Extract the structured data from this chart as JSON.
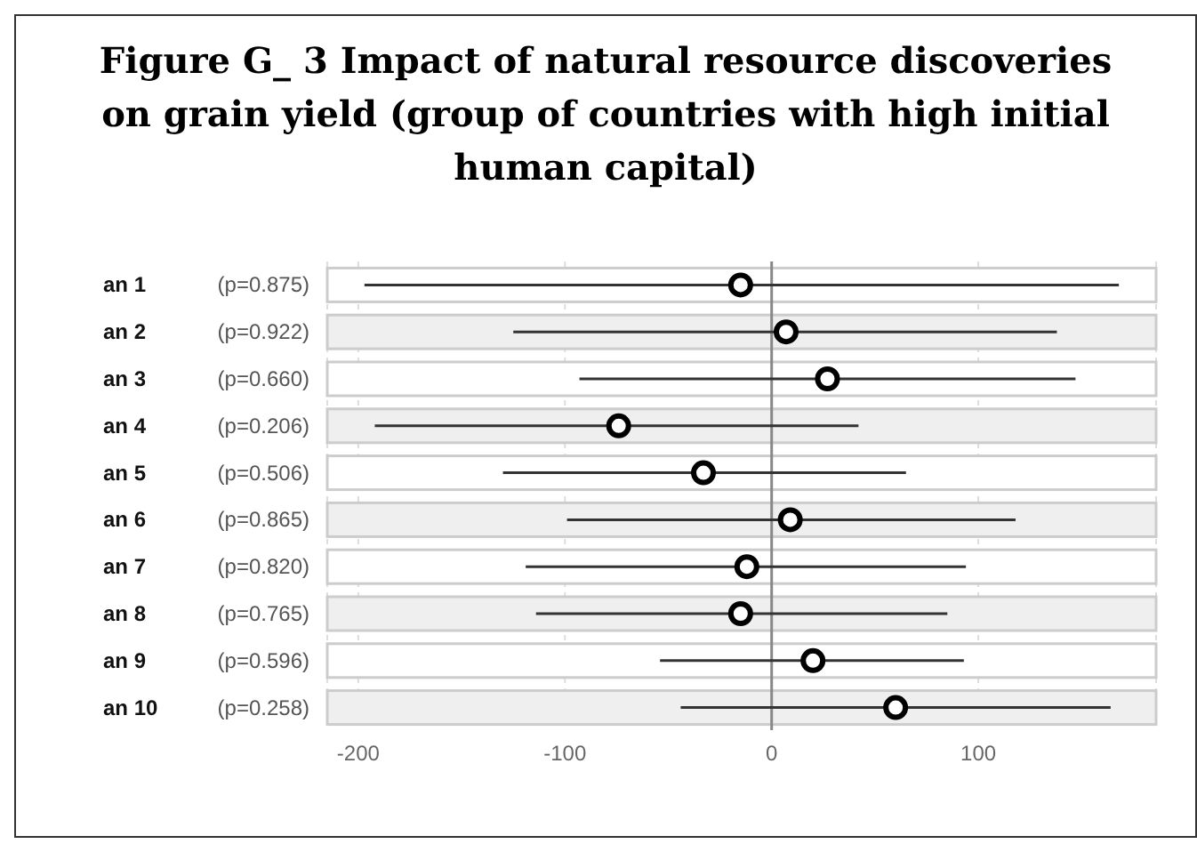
{
  "chart_data": {
    "type": "scatter",
    "orientation": "horizontal",
    "title": "Figure G_ 3 Impact of natural resource discoveries on grain yield (group of countries with high initial human capital)",
    "categories": [
      "an 1",
      "an 2",
      "an 3",
      "an 4",
      "an 5",
      "an 6",
      "an 7",
      "an 8",
      "an 9",
      "an 10"
    ],
    "series": [
      {
        "color": "#000000",
        "values": [
          -15,
          7,
          27,
          -74,
          -33,
          9,
          -12,
          -15,
          20,
          60
        ],
        "errors": [
          [
            -197,
            168
          ],
          [
            -125,
            138
          ],
          [
            -93,
            147
          ],
          [
            -192,
            42
          ],
          [
            -130,
            65
          ],
          [
            -99,
            118
          ],
          [
            -119,
            94
          ],
          [
            -114,
            85
          ],
          [
            -54,
            93
          ],
          [
            -44,
            164
          ]
        ]
      }
    ],
    "annotations": [
      "(p=0.875)",
      "(p=0.922)",
      "(p=0.660)",
      "(p=0.206)",
      "(p=0.506)",
      "(p=0.865)",
      "(p=0.820)",
      "(p=0.765)",
      "(p=0.596)",
      "(p=0.258)"
    ],
    "xlim": [
      -215,
      186
    ],
    "xticks": [
      -200,
      -100,
      0,
      100
    ],
    "ref_lines": [
      {
        "axis": "x",
        "value": 0,
        "color": "#888888"
      }
    ],
    "grid": "x",
    "marker": "circle",
    "legend": false
  }
}
